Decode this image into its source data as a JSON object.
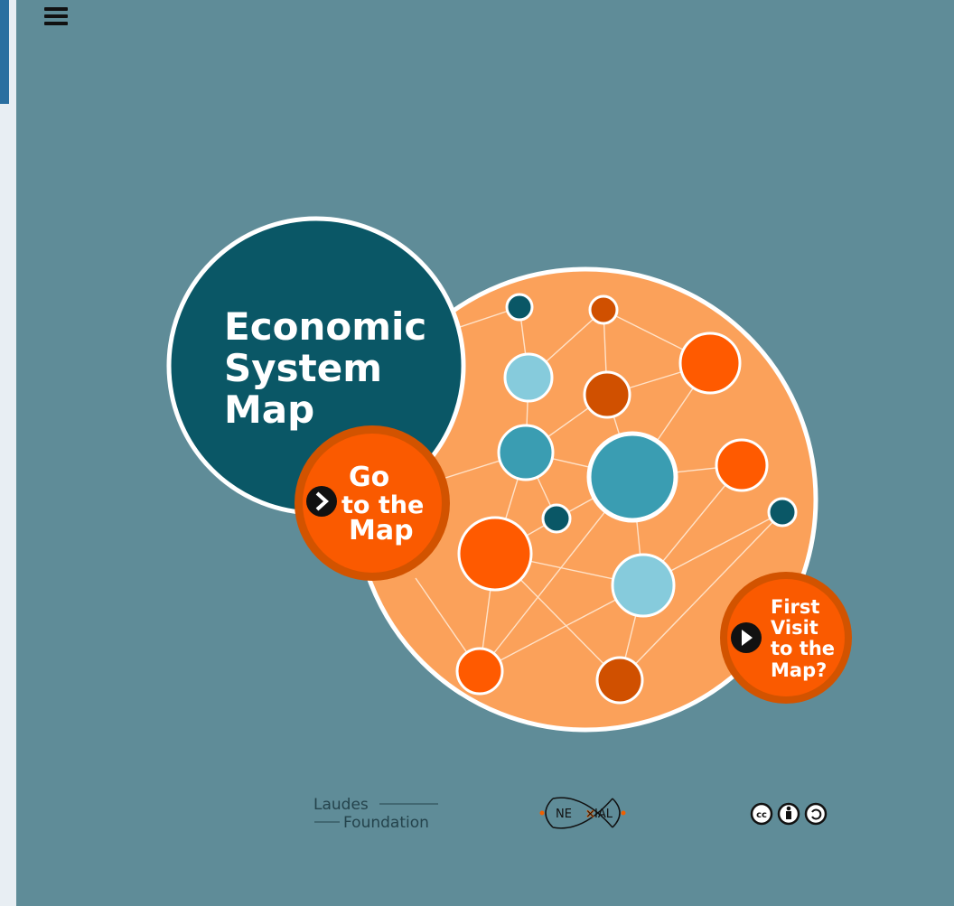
{
  "title": [
    "Economic",
    "System",
    "Map"
  ],
  "buttons": [
    {
      "lines": [
        "Go",
        "to the",
        "Map"
      ]
    },
    {
      "lines": [
        "First",
        "Visit",
        "to the",
        "Map?"
      ]
    }
  ],
  "footer": {
    "laudes": [
      "Laudes",
      "Foundation"
    ],
    "nexial": [
      "NE",
      "IAL"
    ],
    "license": "cc"
  }
}
